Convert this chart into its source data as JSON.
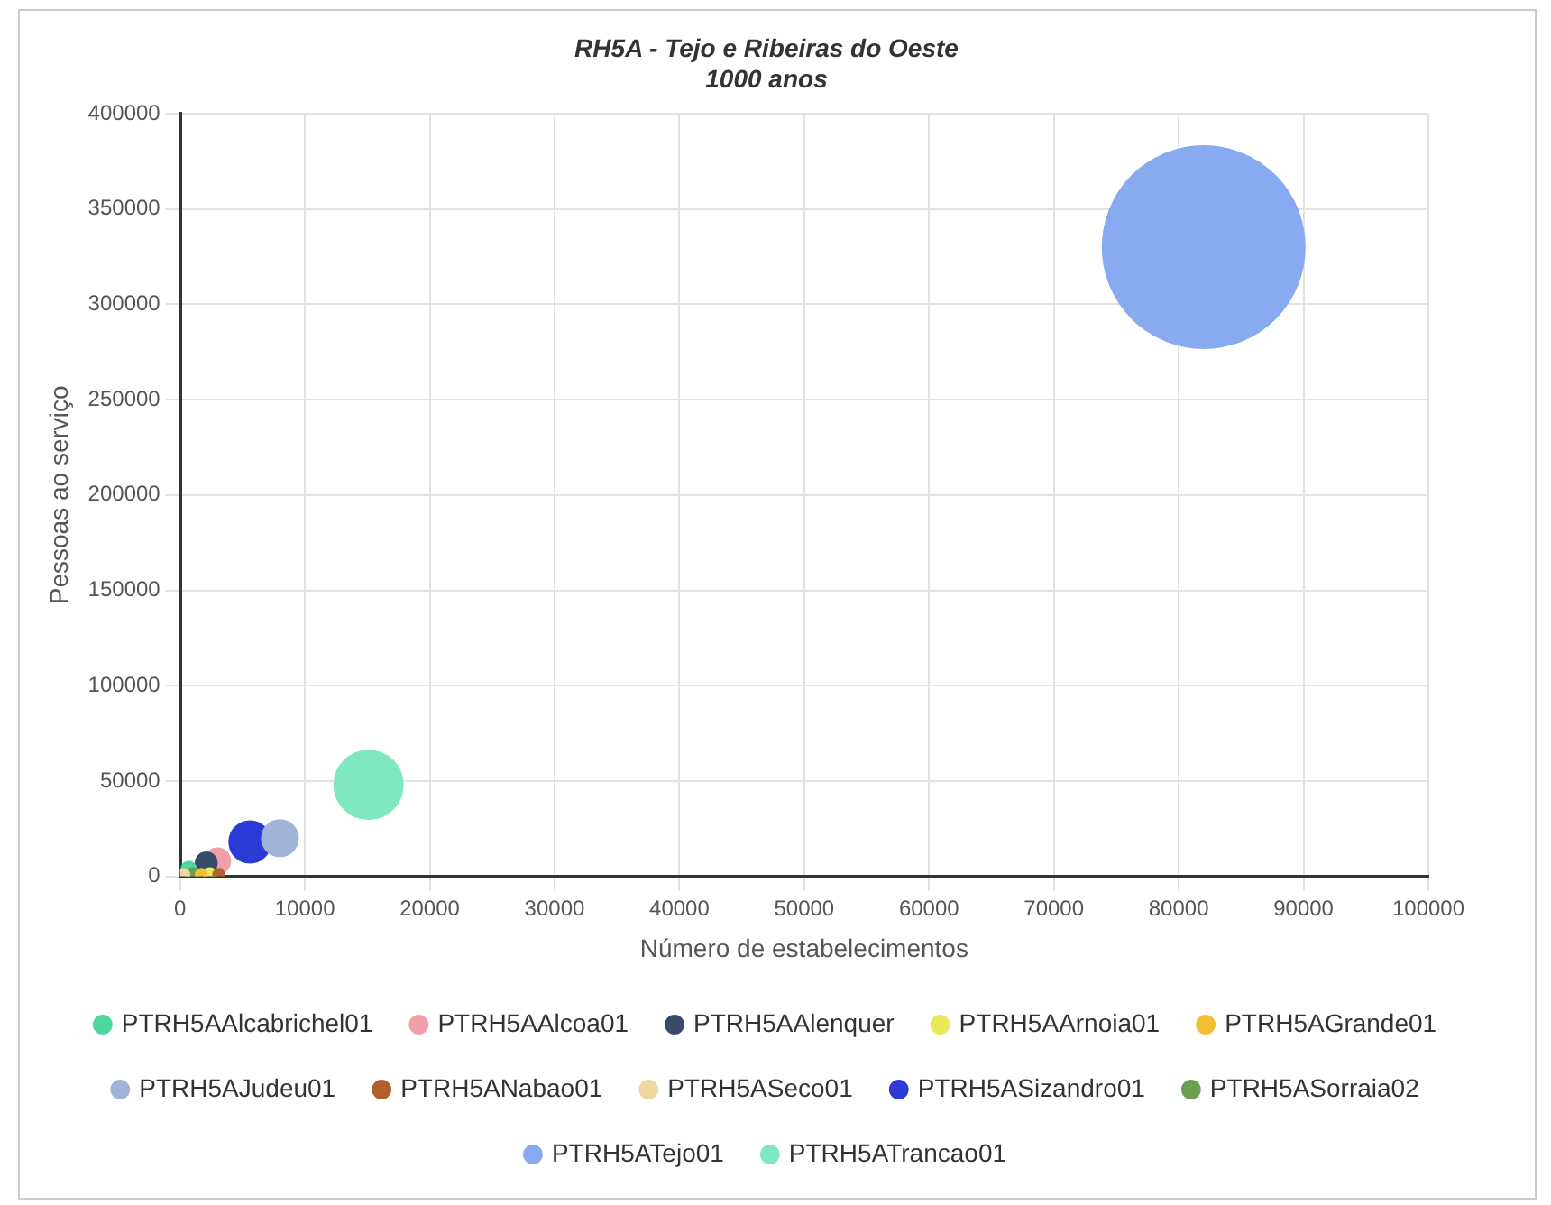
{
  "chart_data": {
    "type": "bubble",
    "title": "RH5A - Tejo e Ribeiras do Oeste",
    "subtitle": "1000 anos",
    "xlabel": "Número de estabelecimentos",
    "ylabel": "Pessoas ao serviço",
    "xlim": [
      0,
      100000
    ],
    "xticks": [
      0,
      10000,
      20000,
      30000,
      40000,
      50000,
      60000,
      70000,
      80000,
      90000,
      100000
    ],
    "ylim": [
      0,
      400000
    ],
    "yticks": [
      0,
      50000,
      100000,
      150000,
      200000,
      250000,
      300000,
      350000,
      400000
    ],
    "grid": true,
    "legend": "bottom",
    "series": [
      {
        "name": "PTRH5AAlcabrichel01",
        "color": "#4cd6a0",
        "x": [
          700
        ],
        "values": [
          4000
        ],
        "sizes": [
          0.005
        ]
      },
      {
        "name": "PTRH5AAlcoa01",
        "color": "#f0a0a8",
        "x": [
          3000
        ],
        "values": [
          8000
        ],
        "sizes": [
          0.016
        ]
      },
      {
        "name": "PTRH5AAlenquer",
        "color": "#3a4a6b",
        "x": [
          2100
        ],
        "values": [
          7000
        ],
        "sizes": [
          0.011
        ]
      },
      {
        "name": "PTRH5AArnoia01",
        "color": "#e8e85a",
        "x": [
          2400
        ],
        "values": [
          1000
        ],
        "sizes": [
          0.004
        ]
      },
      {
        "name": "PTRH5AGrande01",
        "color": "#f0c030",
        "x": [
          1700
        ],
        "values": [
          1000
        ],
        "sizes": [
          0.003
        ]
      },
      {
        "name": "PTRH5AJudeu01",
        "color": "#9fb4d6",
        "x": [
          8000
        ],
        "values": [
          20000
        ],
        "sizes": [
          0.032
        ]
      },
      {
        "name": "PTRH5ANabao01",
        "color": "#b0602a",
        "x": [
          3100
        ],
        "values": [
          1000
        ],
        "sizes": [
          0.003
        ]
      },
      {
        "name": "PTRH5ASeco01",
        "color": "#eed8a0",
        "x": [
          300
        ],
        "values": [
          1000
        ],
        "sizes": [
          0.003
        ]
      },
      {
        "name": "PTRH5ASizandro01",
        "color": "#2a3bd6",
        "x": [
          5600
        ],
        "values": [
          18000
        ],
        "sizes": [
          0.042
        ]
      },
      {
        "name": "PTRH5ASorraia02",
        "color": "#6aa050",
        "x": [
          1000
        ],
        "values": [
          1000
        ],
        "sizes": [
          0.004
        ]
      },
      {
        "name": "PTRH5ATejo01",
        "color": "#88aaf0",
        "x": [
          82000
        ],
        "values": [
          330000
        ],
        "sizes": [
          1
        ]
      },
      {
        "name": "PTRH5ATrancao01",
        "color": "#80e8c0",
        "x": [
          15100
        ],
        "values": [
          48000
        ],
        "sizes": [
          0.115
        ]
      }
    ]
  }
}
